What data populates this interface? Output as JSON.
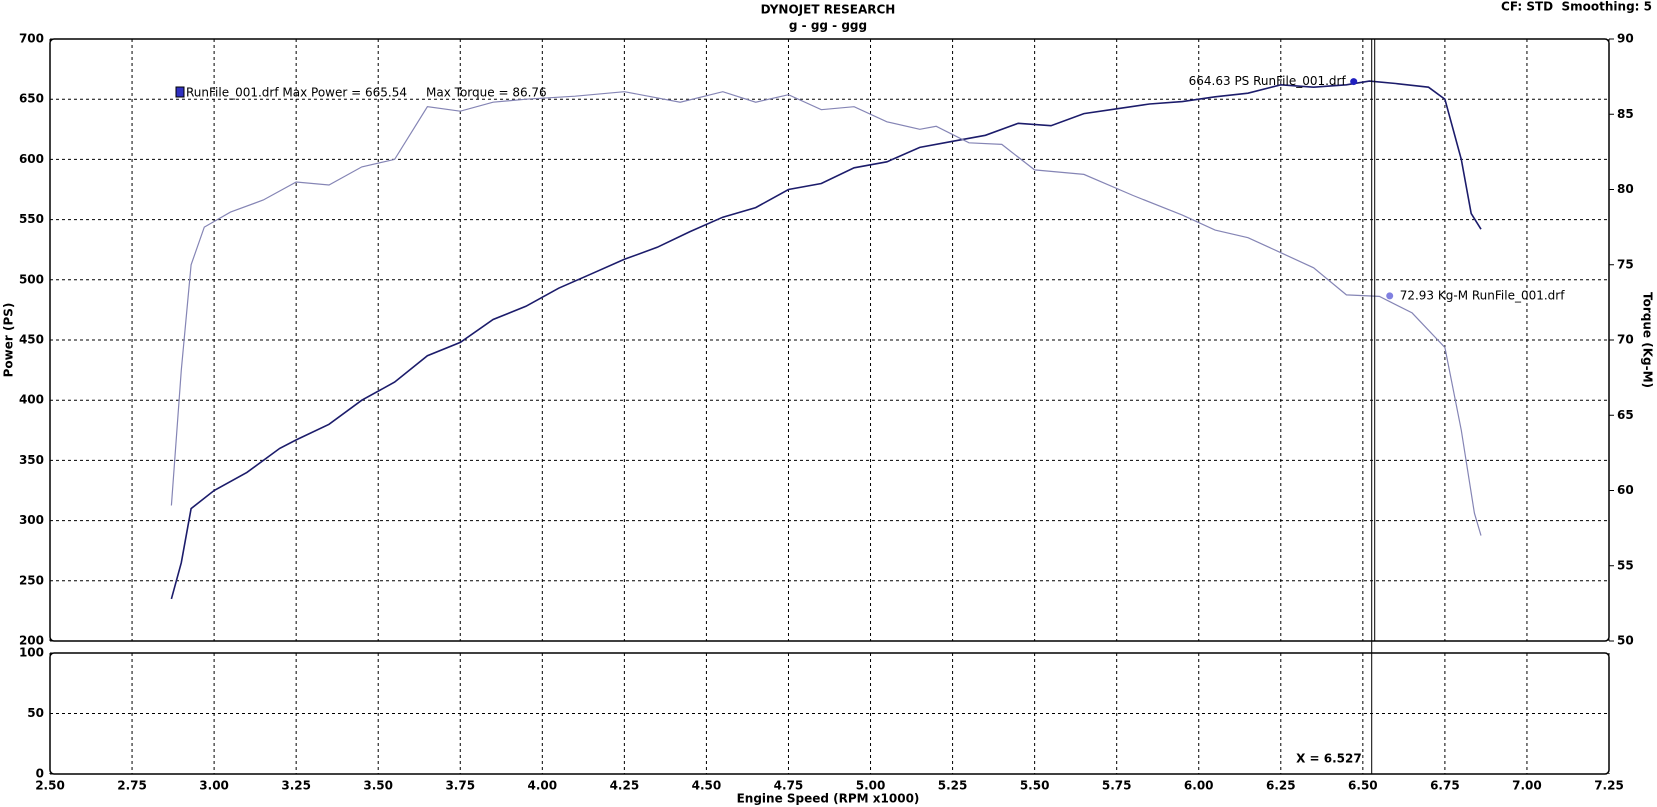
{
  "chart_data": [
    {
      "type": "line",
      "title": "DYNOJET RESEARCH",
      "subtitle": "g - gg - ggg",
      "settings_label": "CF: STD  Smoothing: 5",
      "ylabel": "Power (PS)",
      "y2label": "Torque (Kg-M)",
      "legend_label": "RunFile_001.drf Max Power = 665.54     Max Torque = 86.76",
      "xlim": [
        2.5,
        7.25
      ],
      "xticks": [
        {
          "value": 2.5,
          "label": "2.50"
        },
        {
          "value": 2.75,
          "label": "2.75"
        },
        {
          "value": 3.0,
          "label": "3.00"
        },
        {
          "value": 3.25,
          "label": "3.25"
        },
        {
          "value": 3.5,
          "label": "3.50"
        },
        {
          "value": 3.75,
          "label": "3.75"
        },
        {
          "value": 4.0,
          "label": "4.00"
        },
        {
          "value": 4.25,
          "label": "4.25"
        },
        {
          "value": 4.5,
          "label": "4.50"
        },
        {
          "value": 4.75,
          "label": "4.75"
        },
        {
          "value": 5.0,
          "label": "5.00"
        },
        {
          "value": 5.25,
          "label": "5.25"
        },
        {
          "value": 5.5,
          "label": "5.50"
        },
        {
          "value": 5.75,
          "label": "5.75"
        },
        {
          "value": 6.0,
          "label": "6.00"
        },
        {
          "value": 6.25,
          "label": "6.25"
        },
        {
          "value": 6.5,
          "label": "6.50"
        },
        {
          "value": 6.75,
          "label": "6.75"
        },
        {
          "value": 7.0,
          "label": "7.00"
        },
        {
          "value": 7.25,
          "label": "7.25"
        }
      ],
      "ylim": [
        200,
        700
      ],
      "yticks": [
        200,
        250,
        300,
        350,
        400,
        450,
        500,
        550,
        600,
        650,
        700
      ],
      "y2lim": [
        50,
        90
      ],
      "y2ticks": [
        50,
        55,
        60,
        65,
        70,
        75,
        80,
        85,
        90
      ],
      "grid": true,
      "series": [
        {
          "name": "RunFile_001.drf",
          "color": "#1c1c6b",
          "x": [
            2.87,
            2.9,
            2.93,
            3.0,
            3.1,
            3.2,
            3.25,
            3.35,
            3.45,
            3.55,
            3.65,
            3.75,
            3.85,
            3.95,
            4.05,
            4.15,
            4.25,
            4.35,
            4.45,
            4.55,
            4.65,
            4.75,
            4.85,
            4.95,
            5.05,
            5.15,
            5.25,
            5.35,
            5.45,
            5.55,
            5.65,
            5.75,
            5.85,
            5.95,
            6.05,
            6.15,
            6.25,
            6.35,
            6.45,
            6.52,
            6.6,
            6.7,
            6.75,
            6.8,
            6.83,
            6.86
          ],
          "values": [
            235,
            265,
            310,
            325,
            340,
            360,
            367,
            380,
            400,
            415,
            437,
            448,
            467,
            478,
            493,
            505,
            517,
            527,
            540,
            552,
            560,
            575,
            580,
            593,
            598,
            610,
            615,
            620,
            630,
            628,
            638,
            642,
            646,
            648,
            652,
            655,
            662,
            660,
            662,
            665,
            663,
            660,
            650,
            600,
            555,
            542
          ]
        },
        {
          "name": "RunFile_001.drf",
          "color": "#8585b5",
          "axis": "y2",
          "x": [
            2.87,
            2.9,
            2.93,
            2.97,
            3.05,
            3.15,
            3.25,
            3.35,
            3.45,
            3.55,
            3.65,
            3.75,
            3.85,
            3.95,
            4.1,
            4.25,
            4.42,
            4.55,
            4.65,
            4.75,
            4.85,
            4.95,
            5.05,
            5.15,
            5.2,
            5.3,
            5.4,
            5.5,
            5.65,
            5.8,
            5.95,
            6.05,
            6.15,
            6.25,
            6.35,
            6.45,
            6.55,
            6.65,
            6.75,
            6.8,
            6.84,
            6.86
          ],
          "values": [
            59,
            68,
            75,
            77.5,
            78.5,
            79.3,
            80.5,
            80.3,
            81.5,
            82,
            85.5,
            85.2,
            85.8,
            86,
            86.2,
            86.5,
            85.8,
            86.5,
            85.8,
            86.3,
            85.3,
            85.5,
            84.5,
            84,
            84.2,
            83.1,
            83,
            81.3,
            81,
            79.6,
            78.3,
            77.3,
            76.8,
            75.8,
            74.8,
            73,
            72.9,
            71.8,
            69.5,
            64,
            58.5,
            57
          ]
        }
      ],
      "annotations": [
        {
          "value": 664.63,
          "label": "664.63 PS RunFile_001.drf"
        },
        {
          "value": 72.93,
          "label": "72.93 Kg-M RunFile_001.drf",
          "axis": "y2"
        }
      ]
    },
    {
      "type": "line",
      "xlabel": "Engine Speed (RPM x1000)",
      "ylim": [
        0,
        100
      ],
      "yticks": [
        0,
        50,
        100
      ],
      "cursor": {
        "value": 6.527,
        "label": "X = 6.527"
      }
    }
  ]
}
